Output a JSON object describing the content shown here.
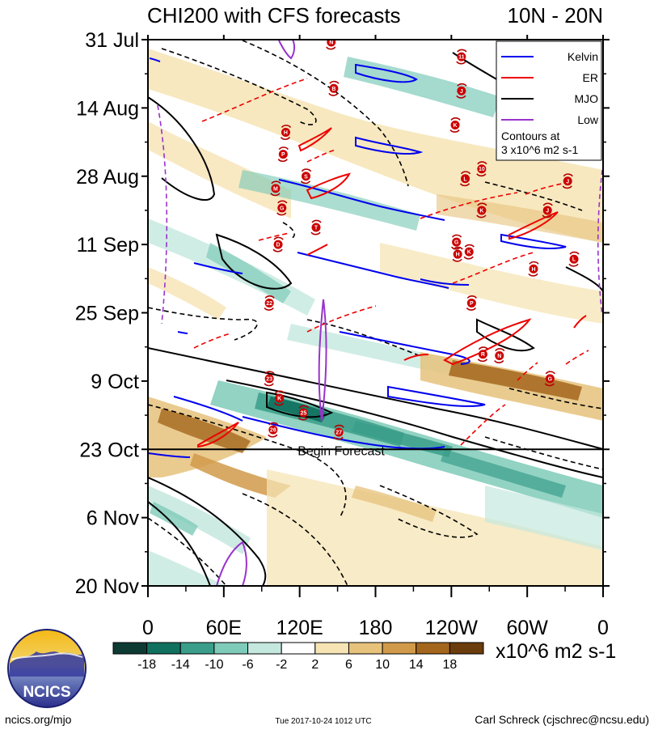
{
  "header": {
    "title": "CHI200 with CFS forecasts",
    "region": "10N - 20N"
  },
  "chart_data": {
    "type": "heatmap",
    "title": "CHI200 with CFS forecasts",
    "subtitle": "10N - 20N",
    "xlabel": "",
    "ylabel": "",
    "x_ticks": [
      "0",
      "60E",
      "120E",
      "180",
      "120W",
      "60W",
      "0"
    ],
    "x_tick_degrees": [
      0,
      60,
      120,
      180,
      240,
      300,
      360
    ],
    "y_ticks": [
      "31 Jul",
      "14 Aug",
      "28 Aug",
      "11 Sep",
      "25 Sep",
      "9 Oct",
      "23 Oct",
      "6 Nov",
      "20 Nov"
    ],
    "y_tick_days": [
      0,
      14,
      28,
      42,
      56,
      70,
      84,
      98,
      112
    ],
    "forecast_start": "23 Oct",
    "forecast_label": "Begin Forecast",
    "colorbar": {
      "labels": [
        "-18",
        "-14",
        "-10",
        "-6",
        "-2",
        "2",
        "6",
        "10",
        "14",
        "18"
      ],
      "bounds": [
        -18,
        -14,
        -10,
        -6,
        -2,
        2,
        6,
        10,
        14,
        18
      ],
      "colors": [
        "#0d3b33",
        "#11715f",
        "#3a9e8a",
        "#7fcbb9",
        "#c4e8de",
        "#ffffff",
        "#f6e4b4",
        "#e6c27b",
        "#d19a4a",
        "#a4661d",
        "#6b3c0c"
      ],
      "units": "x10^6 m2 s-1"
    },
    "legend": {
      "position": "top-right",
      "entries": [
        {
          "name": "Kelvin",
          "color": "#0000ee"
        },
        {
          "name": "ER",
          "color": "#ee0000"
        },
        {
          "name": "MJO",
          "color": "#000000"
        },
        {
          "name": "Low",
          "color": "#9933cc"
        }
      ],
      "note_line1": "Contours at",
      "note_line2": "3 x10^6 m2 s-1"
    },
    "storms": [
      {
        "label": "N",
        "lon": 145,
        "day": 0.5
      },
      {
        "label": "11",
        "lon": 248,
        "day": 3.5
      },
      {
        "label": "B",
        "lon": 147,
        "day": 10
      },
      {
        "label": "J",
        "lon": 248,
        "day": 10.5
      },
      {
        "label": "K",
        "lon": 243,
        "day": 17.5
      },
      {
        "label": "H",
        "lon": 109,
        "day": 19
      },
      {
        "label": "P",
        "lon": 107,
        "day": 23.5
      },
      {
        "label": "10",
        "lon": 264,
        "day": 26.5
      },
      {
        "label": "S",
        "lon": 125,
        "day": 28
      },
      {
        "label": "L",
        "lon": 251,
        "day": 28.5
      },
      {
        "label": "J",
        "lon": 332,
        "day": 29
      },
      {
        "label": "M",
        "lon": 101,
        "day": 30.5
      },
      {
        "label": "G",
        "lon": 106,
        "day": 34.5
      },
      {
        "label": "K",
        "lon": 264,
        "day": 35
      },
      {
        "label": "J",
        "lon": 316,
        "day": 35
      },
      {
        "label": "T",
        "lon": 133,
        "day": 38.5
      },
      {
        "label": "D",
        "lon": 103,
        "day": 42
      },
      {
        "label": "G",
        "lon": 244,
        "day": 41.5
      },
      {
        "label": "H",
        "lon": 245,
        "day": 44
      },
      {
        "label": "K",
        "lon": 254,
        "day": 43.5
      },
      {
        "label": "L",
        "lon": 337,
        "day": 45
      },
      {
        "label": "H",
        "lon": 305,
        "day": 47
      },
      {
        "label": "22",
        "lon": 96,
        "day": 54
      },
      {
        "label": "P",
        "lon": 256,
        "day": 54
      },
      {
        "label": "R",
        "lon": 265,
        "day": 64.5
      },
      {
        "label": "N",
        "lon": 278,
        "day": 64.8
      },
      {
        "label": "23",
        "lon": 96,
        "day": 69.5
      },
      {
        "label": "G",
        "lon": 318,
        "day": 69.5
      },
      {
        "label": "K",
        "lon": 104,
        "day": 73.5
      },
      {
        "label": "25",
        "lon": 123,
        "day": 76.5
      },
      {
        "label": "26",
        "lon": 99,
        "day": 80
      },
      {
        "label": "27",
        "lon": 151,
        "day": 80.5
      }
    ]
  },
  "footer": {
    "logo_text": "NCICS",
    "site": "ncics.org/mjo",
    "timestamp": "Tue 2017-10-24 1012 UTC",
    "author": "Carl Schreck (cjschrec@ncsu.edu)"
  }
}
